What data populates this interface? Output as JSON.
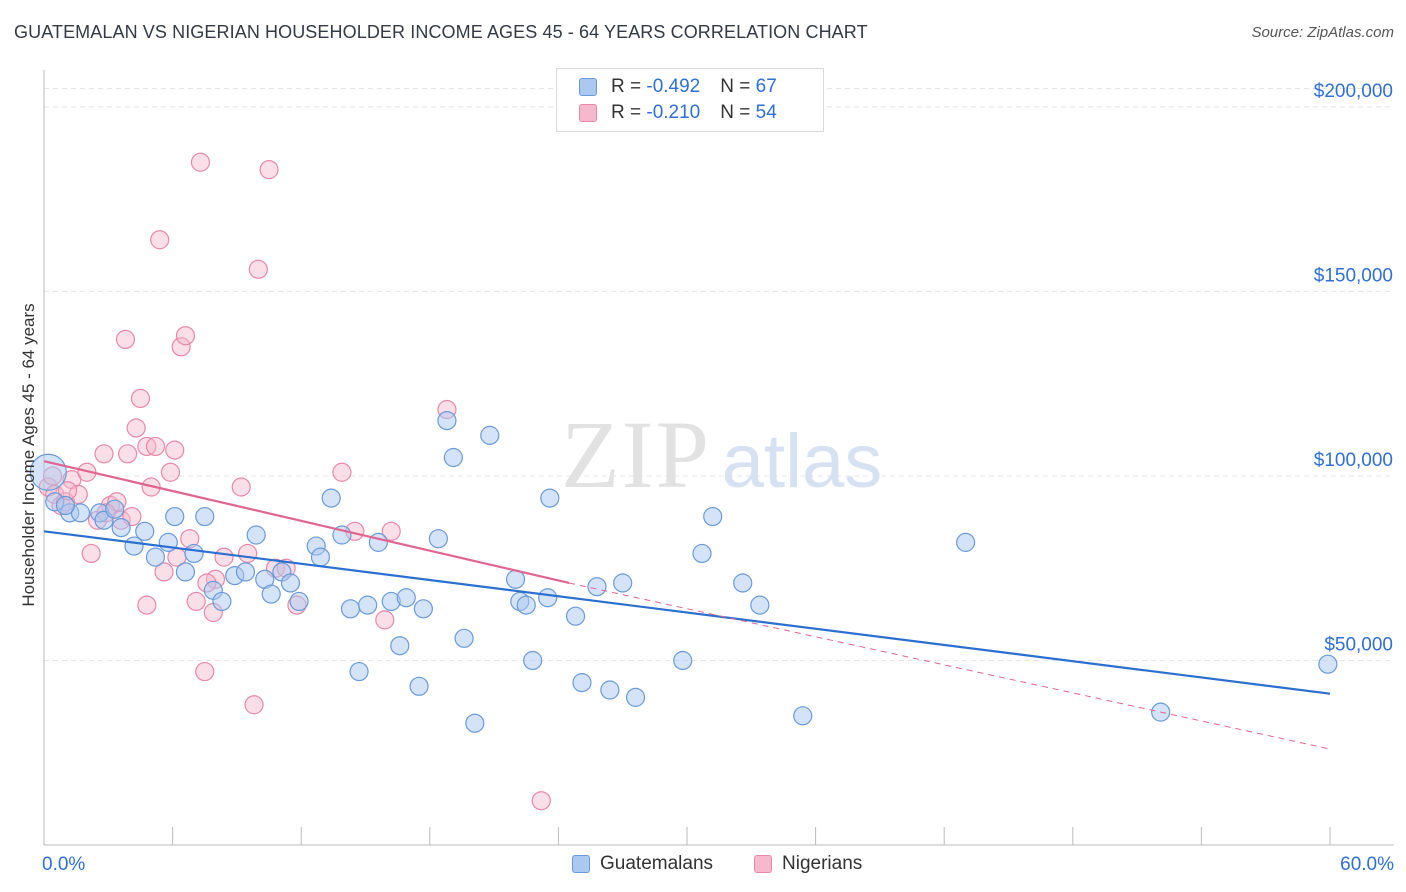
{
  "title": "GUATEMALAN VS NIGERIAN HOUSEHOLDER INCOME AGES 45 - 64 YEARS CORRELATION CHART",
  "source": "Source: ZipAtlas.com",
  "watermark": {
    "zip": "ZIP",
    "atlas": "atlas"
  },
  "legend": {
    "rows": [
      {
        "r_label": "R = ",
        "r_value": "-0.492",
        "n_label": "N = ",
        "n_value": "67"
      },
      {
        "r_label": "R = ",
        "r_value": "-0.210",
        "n_label": "N = ",
        "n_value": "54"
      }
    ]
  },
  "bottom_legend": [
    "Guatemalans",
    "Nigerians"
  ],
  "colors": {
    "guatemalan_fill": "#aac8f0",
    "guatemalan_stroke": "#6a9ad8",
    "guatemalan_line": "#2b6fd0",
    "nigerian_fill": "#f6b8cc",
    "nigerian_stroke": "#e888a8",
    "nigerian_line": "#e06590",
    "axis_label": "#2f6fd6",
    "grid": "#e4e4e4"
  },
  "chart_data": {
    "type": "scatter",
    "title": "GUATEMALAN VS NIGERIAN HOUSEHOLDER INCOME AGES 45 - 64 YEARS CORRELATION CHART",
    "xlabel": "",
    "ylabel": "Householder Income Ages 45 - 64 years",
    "xlim": [
      0,
      60
    ],
    "ylim": [
      0,
      210000
    ],
    "x_tick_labels": [
      "0.0%",
      "60.0%"
    ],
    "y_ticks": [
      50000,
      100000,
      150000,
      200000
    ],
    "y_tick_labels": [
      "$50,000",
      "$100,000",
      "$150,000",
      "$200,000"
    ],
    "grid": true,
    "legend_position": "top-center",
    "series": [
      {
        "name": "Guatemalans",
        "trend": {
          "x": [
            0,
            60
          ],
          "y": [
            85000,
            41000
          ]
        },
        "points": [
          [
            0.2,
            101000
          ],
          [
            0.5,
            93000
          ],
          [
            1.2,
            90000
          ],
          [
            1.7,
            90000
          ],
          [
            2.6,
            90000
          ],
          [
            2.8,
            88000
          ],
          [
            3.6,
            86000
          ],
          [
            4.2,
            81000
          ],
          [
            4.7,
            85000
          ],
          [
            5.2,
            78000
          ],
          [
            5.8,
            82000
          ],
          [
            6.1,
            89000
          ],
          [
            6.6,
            74000
          ],
          [
            7.0,
            79000
          ],
          [
            7.5,
            89000
          ],
          [
            7.9,
            69000
          ],
          [
            8.3,
            66000
          ],
          [
            8.9,
            73000
          ],
          [
            9.4,
            74000
          ],
          [
            9.9,
            84000
          ],
          [
            10.3,
            72000
          ],
          [
            10.6,
            68000
          ],
          [
            11.1,
            74000
          ],
          [
            11.5,
            71000
          ],
          [
            11.9,
            66000
          ],
          [
            12.7,
            81000
          ],
          [
            12.9,
            78000
          ],
          [
            13.4,
            94000
          ],
          [
            13.9,
            84000
          ],
          [
            14.3,
            64000
          ],
          [
            14.7,
            47000
          ],
          [
            15.1,
            65000
          ],
          [
            15.6,
            82000
          ],
          [
            16.2,
            66000
          ],
          [
            16.6,
            54000
          ],
          [
            16.9,
            67000
          ],
          [
            17.5,
            43000
          ],
          [
            17.7,
            64000
          ],
          [
            18.4,
            83000
          ],
          [
            18.8,
            115000
          ],
          [
            19.1,
            105000
          ],
          [
            19.6,
            56000
          ],
          [
            20.1,
            33000
          ],
          [
            20.8,
            111000
          ],
          [
            22.0,
            72000
          ],
          [
            22.2,
            66000
          ],
          [
            22.5,
            65000
          ],
          [
            22.8,
            50000
          ],
          [
            23.5,
            67000
          ],
          [
            23.6,
            94000
          ],
          [
            24.8,
            62000
          ],
          [
            25.1,
            44000
          ],
          [
            25.8,
            70000
          ],
          [
            26.4,
            42000
          ],
          [
            27.0,
            71000
          ],
          [
            27.6,
            40000
          ],
          [
            29.8,
            50000
          ],
          [
            30.7,
            79000
          ],
          [
            31.2,
            89000
          ],
          [
            32.6,
            71000
          ],
          [
            33.4,
            65000
          ],
          [
            35.4,
            35000
          ],
          [
            43.0,
            82000
          ],
          [
            52.1,
            36000
          ],
          [
            59.9,
            49000
          ],
          [
            1.0,
            92000
          ],
          [
            3.3,
            91000
          ]
        ]
      },
      {
        "name": "Nigerians",
        "trend": {
          "x": [
            0,
            24.5
          ],
          "y": [
            104000,
            71000
          ]
        },
        "trend_extension": {
          "x": [
            24.5,
            60
          ],
          "y": [
            71000,
            26000
          ]
        },
        "points": [
          [
            0.2,
            97000
          ],
          [
            0.5,
            95000
          ],
          [
            0.8,
            92000
          ],
          [
            1.0,
            93000
          ],
          [
            1.3,
            99000
          ],
          [
            1.6,
            95000
          ],
          [
            2.0,
            101000
          ],
          [
            2.2,
            79000
          ],
          [
            2.5,
            88000
          ],
          [
            2.8,
            106000
          ],
          [
            3.1,
            92000
          ],
          [
            3.4,
            93000
          ],
          [
            3.6,
            88000
          ],
          [
            3.8,
            137000
          ],
          [
            3.9,
            106000
          ],
          [
            4.3,
            113000
          ],
          [
            4.5,
            121000
          ],
          [
            4.8,
            108000
          ],
          [
            4.8,
            65000
          ],
          [
            5.2,
            108000
          ],
          [
            5.4,
            164000
          ],
          [
            5.6,
            74000
          ],
          [
            5.9,
            101000
          ],
          [
            6.1,
            107000
          ],
          [
            6.2,
            78000
          ],
          [
            6.4,
            135000
          ],
          [
            6.6,
            138000
          ],
          [
            6.8,
            83000
          ],
          [
            7.1,
            66000
          ],
          [
            7.3,
            185000
          ],
          [
            7.5,
            47000
          ],
          [
            7.9,
            63000
          ],
          [
            8.0,
            72000
          ],
          [
            8.4,
            78000
          ],
          [
            9.2,
            97000
          ],
          [
            9.5,
            79000
          ],
          [
            9.8,
            38000
          ],
          [
            10.0,
            156000
          ],
          [
            10.5,
            183000
          ],
          [
            10.8,
            75000
          ],
          [
            11.3,
            75000
          ],
          [
            11.8,
            65000
          ],
          [
            13.9,
            101000
          ],
          [
            14.5,
            85000
          ],
          [
            15.9,
            61000
          ],
          [
            16.2,
            85000
          ],
          [
            18.8,
            118000
          ],
          [
            23.2,
            12000
          ],
          [
            0.4,
            100000
          ],
          [
            1.1,
            96000
          ],
          [
            2.9,
            90000
          ],
          [
            4.1,
            89000
          ],
          [
            5.0,
            97000
          ],
          [
            7.6,
            71000
          ]
        ]
      }
    ]
  }
}
